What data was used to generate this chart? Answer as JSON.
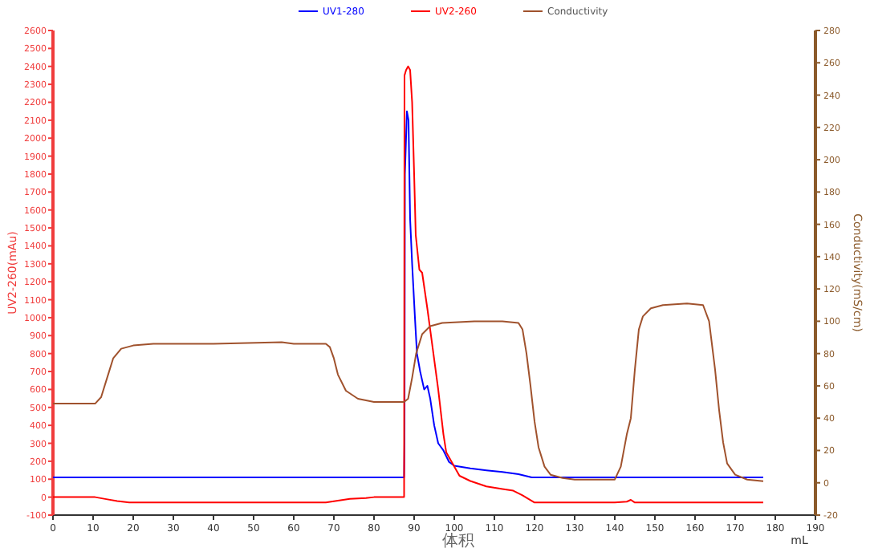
{
  "chart_data": {
    "type": "line",
    "xlabel": "体积",
    "ylabel": "UV2-260(mAu)",
    "y2label": "Conductivity(mS/cm)",
    "annotations": [
      "mL"
    ],
    "xlim": [
      0,
      190
    ],
    "xticks": [
      0,
      10,
      20,
      30,
      40,
      50,
      60,
      70,
      80,
      90,
      100,
      110,
      120,
      130,
      140,
      150,
      160,
      170,
      180,
      190
    ],
    "ylim": [
      -100,
      2600
    ],
    "yticks": [
      -100,
      0,
      100,
      200,
      300,
      400,
      500,
      600,
      700,
      800,
      900,
      1000,
      1100,
      1200,
      1300,
      1400,
      1500,
      1600,
      1700,
      1800,
      1900,
      2000,
      2100,
      2200,
      2300,
      2400,
      2500,
      2600
    ],
    "y2lim": [
      -20,
      280
    ],
    "y2ticks": [
      -20,
      0,
      20,
      40,
      60,
      80,
      100,
      120,
      140,
      160,
      180,
      200,
      220,
      240,
      260,
      280
    ],
    "legend": "top",
    "grid": false,
    "series": [
      {
        "name": "UV1-280",
        "color": "#0000ff",
        "x": [
          0,
          20,
          28,
          70,
          87.5,
          87.6,
          87.7,
          88.2,
          88.6,
          89,
          89.5,
          90.2,
          90.7,
          91.5,
          92.5,
          93.3,
          94,
          95,
          96,
          97.3,
          98.7,
          100,
          104,
          108,
          112,
          116,
          119.3,
          140,
          160,
          177
        ],
        "values": [
          110,
          110,
          110,
          110,
          110,
          300,
          1800,
          2150,
          2100,
          1550,
          1300,
          1000,
          800,
          700,
          600,
          620,
          550,
          400,
          300,
          260,
          196,
          175,
          160,
          149,
          140,
          128,
          110,
          110,
          110,
          110
        ]
      },
      {
        "name": "UV2-260",
        "color": "#ff0000",
        "x": [
          0,
          10.5,
          13,
          16,
          19,
          40,
          60,
          68,
          71,
          74,
          78,
          80,
          87.5,
          87.6,
          88,
          88.5,
          89,
          89.5,
          90,
          90.4,
          91.3,
          92,
          93.3,
          94.5,
          96,
          97.3,
          98,
          101.3,
          104,
          108,
          112,
          114.7,
          117,
          120,
          140,
          143,
          144,
          145,
          150,
          177
        ],
        "values": [
          0,
          0,
          -10,
          -22,
          -30,
          -30,
          -30,
          -30,
          -20,
          -10,
          -5,
          0,
          0,
          2350,
          2380,
          2400,
          2380,
          2200,
          1800,
          1460,
          1268,
          1250,
          1050,
          850,
          600,
          350,
          250,
          119,
          90,
          60,
          45,
          36,
          10,
          -30,
          -30,
          -25,
          -15,
          -30,
          -30,
          -30
        ]
      },
      {
        "name": "Conductivity",
        "color": "#a0522d",
        "axis": "y2",
        "x": [
          0,
          10.5,
          12,
          13.5,
          15,
          17,
          20,
          25,
          40,
          57,
          60,
          68,
          69,
          70,
          71,
          73,
          76,
          80,
          87.5,
          88.5,
          89.5,
          90.5,
          92,
          94,
          97,
          105,
          112,
          116,
          117,
          118,
          119,
          120,
          121,
          122.5,
          124,
          127,
          130,
          140,
          141.5,
          143,
          144,
          145,
          146,
          147,
          149,
          152,
          158,
          162,
          163.5,
          165,
          166,
          167,
          168,
          170,
          173,
          177
        ],
        "values": [
          49,
          49,
          53,
          65,
          77,
          83,
          85,
          86,
          86,
          87,
          86,
          86,
          84,
          77,
          67,
          57,
          52,
          50,
          50,
          52,
          65,
          80,
          92,
          97,
          99,
          100,
          100,
          99,
          95,
          80,
          60,
          38,
          22,
          10,
          5,
          3,
          2,
          2,
          10,
          30,
          40,
          70,
          95,
          103,
          108,
          110,
          111,
          110,
          100,
          70,
          45,
          25,
          12,
          5,
          2,
          1
        ]
      }
    ]
  }
}
